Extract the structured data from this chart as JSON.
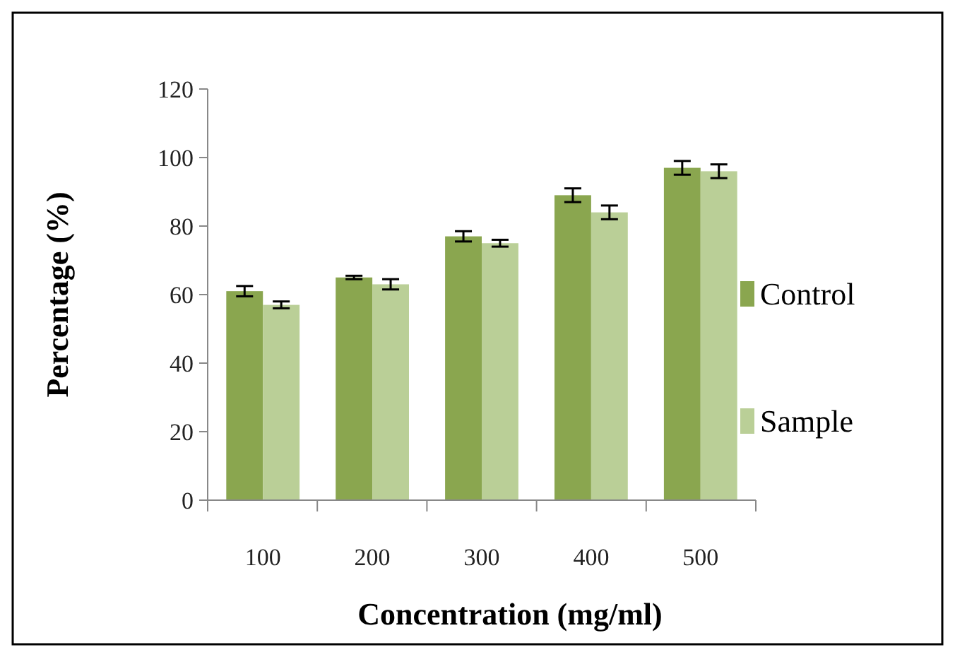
{
  "chart_data": {
    "type": "bar",
    "xlabel": "Concentration (mg/ml)",
    "ylabel": "Percentage (%)",
    "categories": [
      "100",
      "200",
      "300",
      "400",
      "500"
    ],
    "series": [
      {
        "name": "Control",
        "color": "#8aa64f",
        "values": [
          61,
          65,
          77,
          89,
          97
        ],
        "errors": [
          1.5,
          0.5,
          1.5,
          2,
          2
        ]
      },
      {
        "name": "Sample",
        "color": "#bacf97",
        "values": [
          57,
          63,
          75,
          84,
          96
        ],
        "errors": [
          1,
          1.5,
          1,
          2,
          2
        ]
      }
    ],
    "ylim": [
      0,
      120
    ],
    "yticks": [
      0,
      20,
      40,
      60,
      80,
      100,
      120
    ],
    "grid": false,
    "legend": "right"
  }
}
